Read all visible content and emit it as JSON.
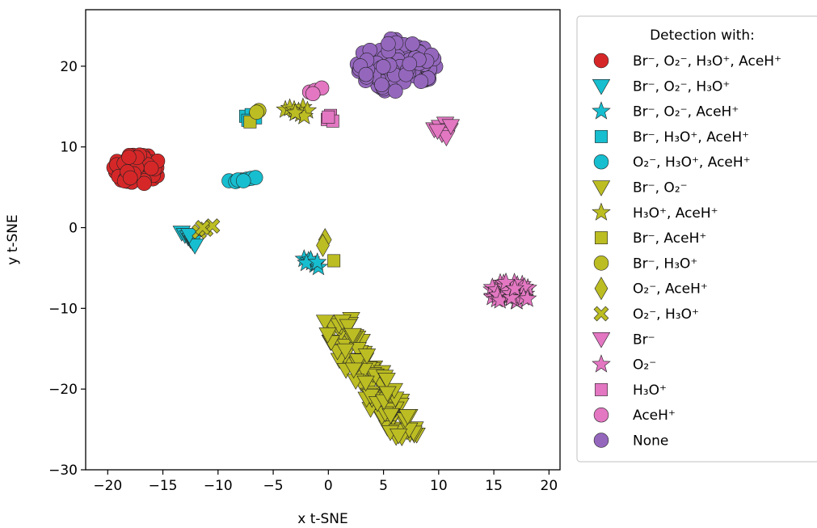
{
  "chart_data": {
    "type": "scatter",
    "title": "",
    "xlabel": "x t-SNE",
    "ylabel": "y t-SNE",
    "xlim": [
      -22,
      21
    ],
    "ylim": [
      -30,
      27
    ],
    "xticks": [
      -20,
      -15,
      -10,
      -5,
      0,
      5,
      10,
      15,
      20
    ],
    "yticks": [
      -30,
      -20,
      -10,
      0,
      10,
      20
    ],
    "xtick_labels": [
      "−20",
      "−15",
      "−10",
      "−5",
      "0",
      "5",
      "10",
      "15",
      "20"
    ],
    "ytick_labels": [
      "−30",
      "−20",
      "−10",
      "0",
      "10",
      "20"
    ],
    "grid": false,
    "legend": {
      "title": "Detection with:",
      "placement": "outside right"
    },
    "series": [
      {
        "name": "Br⁻, O₂⁻, H₃O⁺, AceH⁺",
        "marker": "circle",
        "color": "#d62728",
        "cluster": {
          "center": [
            -17.3,
            7.3
          ],
          "spread": [
            2.2,
            1.9
          ],
          "count": 70
        }
      },
      {
        "name": "Br⁻, O₂⁻, H₃O⁺",
        "marker": "triangle-down",
        "color": "#17becf",
        "points": [
          [
            -13.3,
            -0.6
          ],
          [
            -13,
            -0.9
          ],
          [
            -12.7,
            -1.2
          ],
          [
            -12.5,
            -1.5
          ],
          [
            -12.3,
            -1.8
          ],
          [
            -12.1,
            -2.2
          ],
          [
            -12.6,
            -0.9
          ]
        ]
      },
      {
        "name": "Br⁻, O₂⁻, AceH⁺",
        "marker": "star",
        "color": "#17becf",
        "points": [
          [
            -2.2,
            -3.9
          ],
          [
            -1.8,
            -4.1
          ],
          [
            -1.5,
            -4.3
          ],
          [
            -1.2,
            -4.6
          ],
          [
            -0.9,
            -4.9
          ],
          [
            -1.6,
            -4.0
          ],
          [
            -2.0,
            -4.4
          ],
          [
            -1.0,
            -4.3
          ]
        ]
      },
      {
        "name": "Br⁻, H₃O⁺, AceH⁺",
        "marker": "square",
        "color": "#17becf",
        "points": [
          [
            -7.5,
            13.8
          ],
          [
            -7.0,
            14.0
          ],
          [
            -6.6,
            13.6
          ],
          [
            -7.3,
            13.3
          ]
        ]
      },
      {
        "name": "O₂⁻, H₃O⁺, AceH⁺",
        "marker": "circle",
        "color": "#17becf",
        "points": [
          [
            -9.0,
            5.8
          ],
          [
            -8.4,
            5.7
          ],
          [
            -7.9,
            5.9
          ],
          [
            -7.4,
            6.0
          ],
          [
            -7.0,
            6.1
          ],
          [
            -6.6,
            6.2
          ],
          [
            -8.2,
            5.9
          ],
          [
            -7.7,
            5.8
          ]
        ]
      },
      {
        "name": "Br⁻, O₂⁻",
        "marker": "triangle-down",
        "color": "#bcbd22",
        "cluster_line": {
          "from": [
            0.3,
            -11.0
          ],
          "to": [
            7.0,
            -26.0
          ],
          "width": 3.0,
          "count": 110
        }
      },
      {
        "name": "H₃O⁺, AceH⁺",
        "marker": "star",
        "color": "#bcbd22",
        "points": [
          [
            -3.9,
            14.6
          ],
          [
            -3.5,
            14.8
          ],
          [
            -3.1,
            14.6
          ],
          [
            -2.7,
            14.4
          ],
          [
            -2.3,
            14.9
          ],
          [
            -2.5,
            14.1
          ],
          [
            -1.9,
            14.5
          ],
          [
            -2.2,
            13.8
          ],
          [
            -3.0,
            14.2
          ]
        ]
      },
      {
        "name": "Br⁻, AceH⁺",
        "marker": "square",
        "color": "#bcbd22",
        "points": [
          [
            -7.1,
            13.1
          ],
          [
            0.5,
            -4.1
          ]
        ]
      },
      {
        "name": "Br⁻, H₃O⁺",
        "marker": "circle",
        "color": "#bcbd22",
        "points": [
          [
            -6.3,
            14.5
          ],
          [
            -6.5,
            14.3
          ]
        ]
      },
      {
        "name": "O₂⁻, AceH⁺",
        "marker": "diamond",
        "color": "#bcbd22",
        "points": [
          [
            -0.3,
            -1.5
          ],
          [
            -0.5,
            -2.2
          ]
        ]
      },
      {
        "name": "O₂⁻, H₃O⁺",
        "marker": "x",
        "color": "#bcbd22",
        "points": [
          [
            -11.7,
            -0.5
          ],
          [
            -11.1,
            -0.2
          ],
          [
            -10.5,
            0.2
          ],
          [
            -11.4,
            0.0
          ]
        ]
      },
      {
        "name": "Br⁻",
        "marker": "triangle-down",
        "color": "#e377c2",
        "points": [
          [
            9.6,
            12.2
          ],
          [
            10.1,
            12.5
          ],
          [
            10.6,
            12.9
          ],
          [
            11.0,
            12.1
          ],
          [
            10.3,
            11.6
          ],
          [
            10.7,
            11.2
          ],
          [
            9.9,
            12.0
          ],
          [
            11.1,
            12.6
          ]
        ]
      },
      {
        "name": "O₂⁻",
        "marker": "star",
        "color": "#e377c2",
        "cluster": {
          "center": [
            16.5,
            -8.0
          ],
          "spread": [
            2.0,
            1.3
          ],
          "count": 45
        }
      },
      {
        "name": "H₃O⁺",
        "marker": "square",
        "color": "#e377c2",
        "points": [
          [
            -0.1,
            13.4
          ],
          [
            0.2,
            13.9
          ],
          [
            0.4,
            13.2
          ],
          [
            0.0,
            13.7
          ]
        ]
      },
      {
        "name": "AceH⁺",
        "marker": "circle",
        "color": "#e377c2",
        "points": [
          [
            -1.7,
            16.8
          ],
          [
            -1.2,
            17.0
          ],
          [
            -0.6,
            17.3
          ],
          [
            -1.4,
            16.6
          ]
        ]
      },
      {
        "name": "None",
        "marker": "circle",
        "color": "#9467bd",
        "cluster": {
          "center": [
            6.2,
            20.2
          ],
          "spread": [
            3.6,
            3.5
          ],
          "count": 110
        }
      }
    ]
  }
}
